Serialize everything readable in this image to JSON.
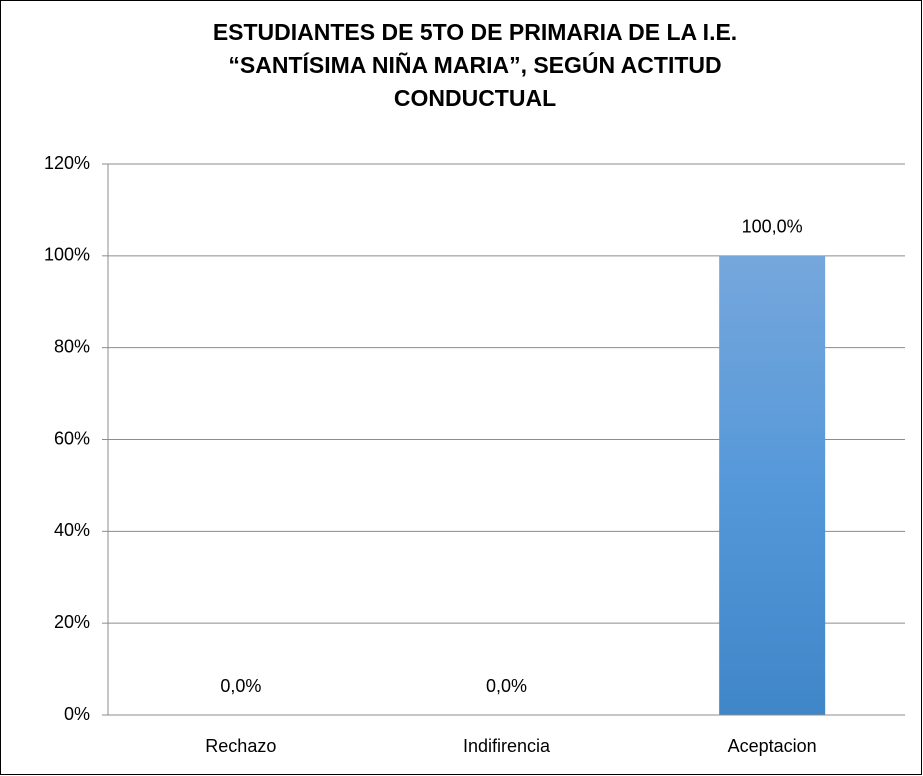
{
  "chart_data": {
    "type": "bar",
    "title": [
      "ESTUDIANTES DE 5TO DE PRIMARIA DE LA I.E.",
      "“SANTÍSIMA NIÑA MARIA”, SEGÚN ACTITUD",
      "CONDUCTUAL"
    ],
    "categories": [
      "Rechazo",
      "Indifirencia",
      "Aceptacion"
    ],
    "values": [
      0,
      0,
      100
    ],
    "value_labels": [
      "0,0%",
      "0,0%",
      "100,0%"
    ],
    "color": "#4a8fd4",
    "ylim": [
      0,
      120
    ],
    "yticks": [
      {
        "value": 0,
        "label": "0%"
      },
      {
        "value": 20,
        "label": "20%"
      },
      {
        "value": 40,
        "label": "40%"
      },
      {
        "value": 60,
        "label": "60%"
      },
      {
        "value": 80,
        "label": "80%"
      },
      {
        "value": 100,
        "label": "100%"
      },
      {
        "value": 120,
        "label": "120%"
      }
    ],
    "grid": true
  }
}
